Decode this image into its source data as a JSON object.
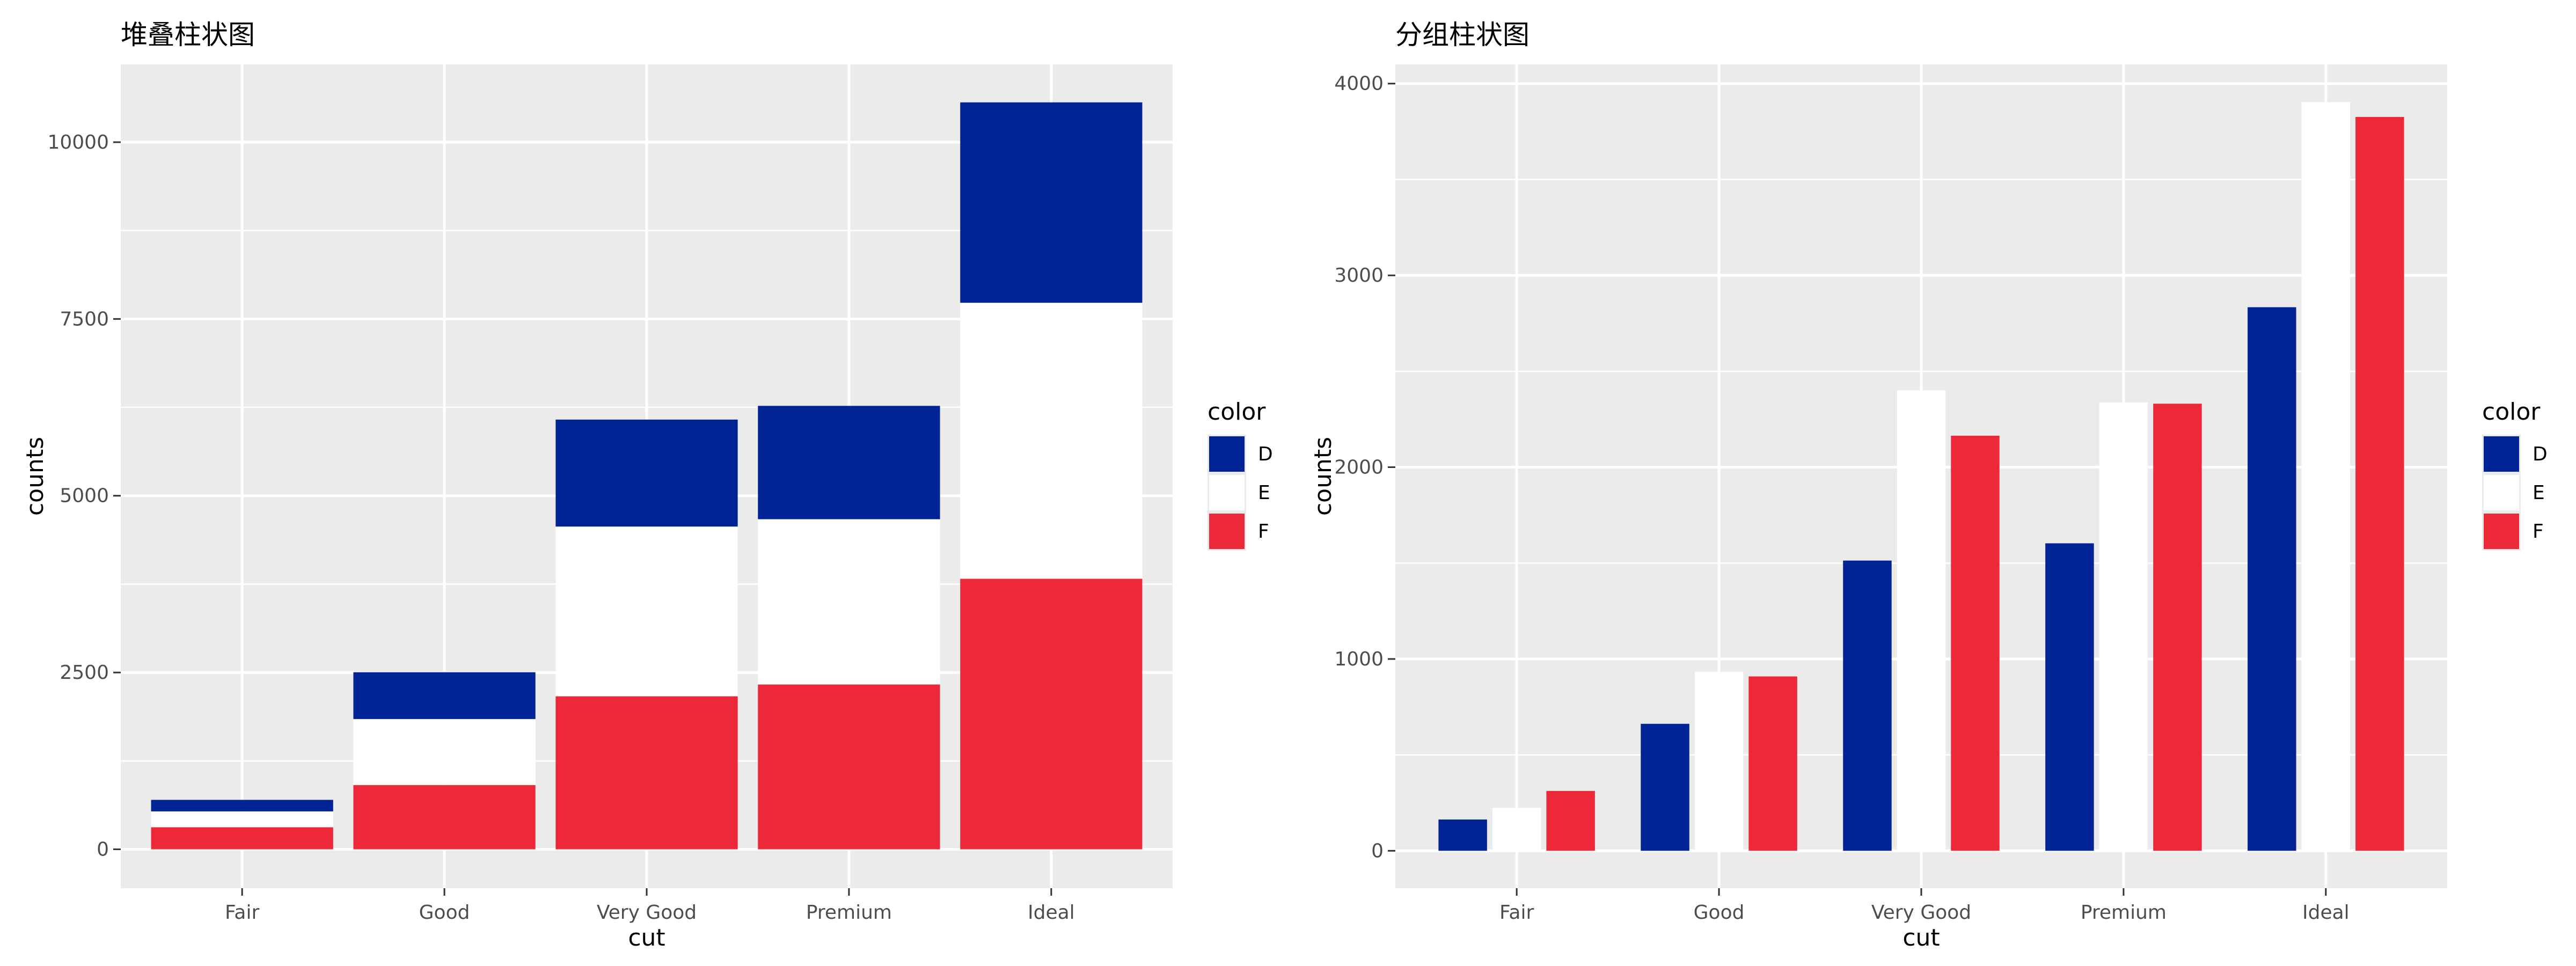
{
  "colors": {
    "D": "#002395",
    "E": "#ffffff",
    "F": "#ED2939",
    "panel": "#ebebeb",
    "grid": "#ffffff"
  },
  "legend": {
    "title": "color",
    "entries": [
      "D",
      "E",
      "F"
    ]
  },
  "chart_data": [
    {
      "type": "bar",
      "mode": "stacked",
      "title": "堆叠柱状图",
      "xlabel": "cut",
      "ylabel": "counts",
      "categories": [
        "Fair",
        "Good",
        "Very Good",
        "Premium",
        "Ideal"
      ],
      "yticks": [
        0,
        2500,
        5000,
        7500,
        10000
      ],
      "ytick_labels": [
        "0",
        "2500",
        "5000",
        "7500",
        "10000"
      ],
      "ylim": [
        -550,
        11100
      ],
      "grid": true,
      "legend_position": "right",
      "series": [
        {
          "name": "D",
          "values": [
            163,
            662,
            1513,
            1603,
            2834
          ]
        },
        {
          "name": "E",
          "values": [
            224,
            933,
            2400,
            2337,
            3903
          ]
        },
        {
          "name": "F",
          "values": [
            312,
            909,
            2164,
            2331,
            3826
          ]
        }
      ]
    },
    {
      "type": "bar",
      "mode": "grouped",
      "title": "分组柱状图",
      "xlabel": "cut",
      "ylabel": "counts",
      "categories": [
        "Fair",
        "Good",
        "Very Good",
        "Premium",
        "Ideal"
      ],
      "yticks": [
        0,
        1000,
        2000,
        3000,
        4000
      ],
      "ytick_labels": [
        "0",
        "1000",
        "2000",
        "3000",
        "4000"
      ],
      "ylim": [
        -195,
        4100
      ],
      "grid": true,
      "legend_position": "right",
      "series": [
        {
          "name": "D",
          "values": [
            163,
            662,
            1513,
            1603,
            2834
          ]
        },
        {
          "name": "E",
          "values": [
            224,
            933,
            2400,
            2337,
            3903
          ]
        },
        {
          "name": "F",
          "values": [
            312,
            909,
            2164,
            2331,
            3826
          ]
        }
      ]
    }
  ]
}
